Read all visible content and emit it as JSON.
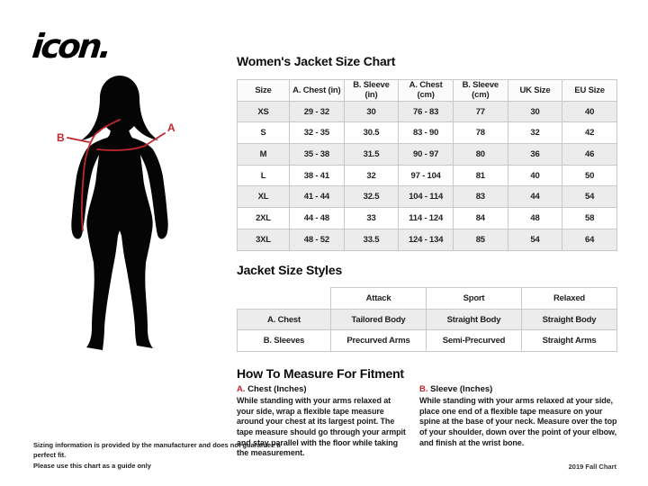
{
  "brand": {
    "logo_text": "icon."
  },
  "figure": {
    "label_a": "A",
    "label_b": "B"
  },
  "size_chart": {
    "title": "Women's Jacket Size Chart",
    "columns": [
      "Size",
      "A. Chest (in)",
      "B. Sleeve (in)",
      "A. Chest (cm)",
      "B. Sleeve (cm)",
      "UK Size",
      "EU Size"
    ],
    "rows": [
      [
        "XS",
        "29 - 32",
        "30",
        "76 - 83",
        "77",
        "30",
        "40"
      ],
      [
        "S",
        "32 - 35",
        "30.5",
        "83 - 90",
        "78",
        "32",
        "42"
      ],
      [
        "M",
        "35 - 38",
        "31.5",
        "90 - 97",
        "80",
        "36",
        "46"
      ],
      [
        "L",
        "38 - 41",
        "32",
        "97 - 104",
        "81",
        "40",
        "50"
      ],
      [
        "XL",
        "41 - 44",
        "32.5",
        "104 - 114",
        "83",
        "44",
        "54"
      ],
      [
        "2XL",
        "44 - 48",
        "33",
        "114 - 124",
        "84",
        "48",
        "58"
      ],
      [
        "3XL",
        "48 - 52",
        "33.5",
        "124 - 134",
        "85",
        "54",
        "64"
      ]
    ]
  },
  "style_chart": {
    "title": "Jacket Size Styles",
    "columns": [
      "",
      "Attack",
      "Sport",
      "Relaxed"
    ],
    "rows": [
      [
        "A. Chest",
        "Tailored Body",
        "Straight Body",
        "Straight Body"
      ],
      [
        "B. Sleeves",
        "Precurved Arms",
        "Semi-Precurved",
        "Straight Arms"
      ]
    ]
  },
  "fitment": {
    "title": "How To Measure For Fitment",
    "sections": [
      {
        "prefix": "A.",
        "heading": " Chest (Inches)",
        "body": "While standing with your arms relaxed at your side, wrap a flexible tape measure around your chest at its largest point. The tape measure should go through your armpit and stay parallel with the floor while taking the measurement."
      },
      {
        "prefix": "B.",
        "heading": " Sleeve (Inches)",
        "body": "While standing with your arms relaxed at your side, place one end of a flexible tape measure on your spine at the base of your neck. Measure over the top of your shoulder, down over the point of your elbow, and finish at the wrist bone."
      }
    ]
  },
  "footer": {
    "disclaimer_line1": "Sizing information is provided by the manufacturer and does not guarantee a perfect fit.",
    "disclaimer_line2": "Please use this chart as a guide only",
    "chart_version": "2019 Fall Chart"
  },
  "colors": {
    "accent_red": "#c1272d",
    "row_gray": "#ececec",
    "table_border": "#c9c9c9",
    "silhouette_black": "#050505"
  }
}
